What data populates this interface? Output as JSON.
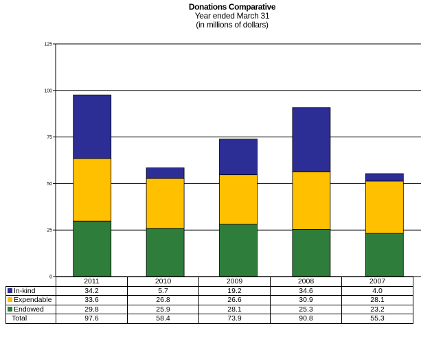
{
  "chart_data": {
    "type": "bar",
    "stacked": true,
    "title": "Donations Comparative",
    "subtitle_line1": "Year ended March 31",
    "subtitle_line2": "(in millions of dollars)",
    "categories": [
      "2011",
      "2010",
      "2009",
      "2008",
      "2007"
    ],
    "series": [
      {
        "name": "In-kind",
        "values": [
          "34.2",
          "5.7",
          "19.2",
          "34.6",
          "4.0"
        ],
        "color": "#2d2d96"
      },
      {
        "name": "Expendable",
        "values": [
          "33.6",
          "26.8",
          "26.6",
          "30.9",
          "28.1"
        ],
        "color": "#ffc000"
      },
      {
        "name": "Endowed",
        "values": [
          "29.8",
          "25.9",
          "28.1",
          "25.3",
          "23.2"
        ],
        "color": "#2e7d3a"
      }
    ],
    "total": {
      "name": "Total",
      "values": [
        "97.6",
        "58.4",
        "73.9",
        "90.8",
        "55.3"
      ]
    },
    "yticks": [
      "0",
      "25",
      "50",
      "75",
      "100",
      "125"
    ],
    "ylim": [
      0,
      125
    ],
    "grid": true,
    "legend": "data table"
  }
}
